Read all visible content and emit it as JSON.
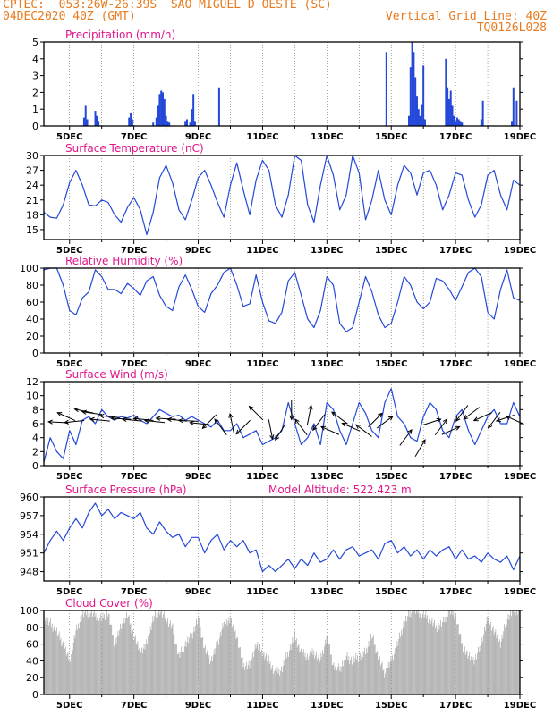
{
  "header": {
    "line1_left": "CPTEC:  053:26W-26:39S  SAO MIGUEL D OESTE (SC)",
    "line2_left": "04DEC2020 40Z (GMT)",
    "line2_right": "Vertical Grid Line: 40Z",
    "line3_right": "TQ0126L028"
  },
  "colors": {
    "header_text": "#e87a1e",
    "title_text": "#e0168a",
    "series": "#2448d8",
    "cloud": "#a6a6a6",
    "axis": "#000000"
  },
  "x_axis": {
    "ticks": [
      "5DEC",
      "7DEC",
      "9DEC",
      "11DEC",
      "13DEC",
      "15DEC",
      "17DEC",
      "19DEC"
    ],
    "tick_days": [
      5,
      7,
      9,
      11,
      13,
      15,
      17,
      19
    ],
    "range": [
      4.2,
      19.0
    ]
  },
  "chart_data": [
    {
      "id": "precip",
      "type": "bar",
      "title": "Precipitation (mm/h)",
      "ylim": [
        0,
        5
      ],
      "yticks": [
        0,
        1,
        2,
        3,
        4,
        5
      ],
      "x": [
        5.45,
        5.5,
        5.55,
        5.8,
        5.85,
        5.9,
        6.85,
        6.9,
        6.95,
        7.6,
        7.7,
        7.75,
        7.8,
        7.85,
        7.9,
        7.95,
        8.0,
        8.05,
        8.1,
        8.6,
        8.65,
        8.75,
        8.8,
        8.85,
        8.9,
        9.65,
        14.85,
        15.55,
        15.6,
        15.65,
        15.7,
        15.75,
        15.8,
        15.85,
        15.9,
        15.95,
        16.0,
        16.05,
        16.7,
        16.75,
        16.8,
        16.85,
        16.9,
        16.95,
        17.0,
        17.05,
        17.1,
        17.15,
        17.2,
        17.8,
        17.85,
        18.75,
        18.8,
        18.9
      ],
      "values": [
        0.5,
        1.2,
        0.4,
        0.9,
        0.6,
        0.3,
        0.5,
        0.8,
        0.4,
        0.2,
        0.5,
        1.2,
        1.9,
        2.1,
        2.0,
        1.6,
        0.6,
        0.3,
        0.2,
        0.3,
        0.4,
        0.2,
        1.0,
        1.9,
        0.3,
        2.3,
        4.4,
        0.6,
        3.5,
        5.0,
        4.4,
        2.9,
        1.8,
        1.0,
        0.6,
        1.3,
        3.6,
        0.4,
        4.0,
        2.3,
        1.6,
        2.1,
        1.2,
        0.6,
        0.3,
        0.5,
        0.4,
        0.3,
        0.2,
        0.4,
        1.5,
        0.3,
        2.3,
        1.5
      ]
    },
    {
      "id": "temp",
      "type": "line",
      "title": "Surface Temperature (nC)",
      "ylim": [
        13,
        30
      ],
      "yticks": [
        15,
        18,
        21,
        24,
        27,
        30
      ],
      "x": [
        4.2,
        4.4,
        4.6,
        4.8,
        5.0,
        5.2,
        5.4,
        5.6,
        5.8,
        6.0,
        6.2,
        6.4,
        6.6,
        6.8,
        7.0,
        7.2,
        7.4,
        7.6,
        7.8,
        8.0,
        8.2,
        8.4,
        8.6,
        8.8,
        9.0,
        9.2,
        9.4,
        9.6,
        9.8,
        10.0,
        10.2,
        10.4,
        10.6,
        10.8,
        11.0,
        11.2,
        11.4,
        11.6,
        11.8,
        12.0,
        12.2,
        12.4,
        12.6,
        12.8,
        13.0,
        13.2,
        13.4,
        13.6,
        13.8,
        14.0,
        14.2,
        14.4,
        14.6,
        14.8,
        15.0,
        15.2,
        15.4,
        15.6,
        15.8,
        16.0,
        16.2,
        16.4,
        16.6,
        16.8,
        17.0,
        17.2,
        17.4,
        17.6,
        17.8,
        18.0,
        18.2,
        18.4,
        18.6,
        18.8,
        19.0
      ],
      "values": [
        18.5,
        17.5,
        17.3,
        20,
        24.5,
        27,
        24,
        20,
        19.8,
        21,
        20.5,
        18,
        16.5,
        19.5,
        21.5,
        19,
        14,
        18.5,
        25.5,
        28,
        24.5,
        19,
        17,
        21,
        25.5,
        27,
        24,
        20.5,
        17.5,
        24,
        28.5,
        23,
        18,
        25,
        29,
        27,
        20,
        17.5,
        22,
        30,
        29,
        20,
        16.5,
        24,
        30,
        26,
        19,
        22,
        30,
        26.5,
        17,
        21,
        27,
        21,
        18,
        24,
        28,
        26.5,
        22,
        26.5,
        27,
        24,
        19,
        22,
        26.5,
        26,
        21,
        17.5,
        20,
        26,
        27,
        22,
        19,
        25,
        24
      ]
    },
    {
      "id": "rh",
      "type": "line",
      "title": "Relative Humidity (%)",
      "ylim": [
        0,
        100
      ],
      "yticks": [
        0,
        20,
        40,
        60,
        80,
        100
      ],
      "x": [
        4.2,
        4.4,
        4.6,
        4.8,
        5.0,
        5.2,
        5.4,
        5.6,
        5.8,
        6.0,
        6.2,
        6.4,
        6.6,
        6.8,
        7.0,
        7.2,
        7.4,
        7.6,
        7.8,
        8.0,
        8.2,
        8.4,
        8.6,
        8.8,
        9.0,
        9.2,
        9.4,
        9.6,
        9.8,
        10.0,
        10.2,
        10.4,
        10.6,
        10.8,
        11.0,
        11.2,
        11.4,
        11.6,
        11.8,
        12.0,
        12.2,
        12.4,
        12.6,
        12.8,
        13.0,
        13.2,
        13.4,
        13.6,
        13.8,
        14.0,
        14.2,
        14.4,
        14.6,
        14.8,
        15.0,
        15.2,
        15.4,
        15.6,
        15.8,
        16.0,
        16.2,
        16.4,
        16.6,
        16.8,
        17.0,
        17.2,
        17.4,
        17.6,
        17.8,
        18.0,
        18.2,
        18.4,
        18.6,
        18.8,
        19.0
      ],
      "values": [
        98,
        100,
        100,
        80,
        50,
        45,
        65,
        72,
        98,
        90,
        75,
        75,
        70,
        82,
        76,
        68,
        85,
        90,
        68,
        55,
        50,
        78,
        92,
        75,
        55,
        48,
        70,
        80,
        95,
        100,
        80,
        55,
        58,
        92,
        60,
        38,
        35,
        48,
        85,
        95,
        68,
        40,
        30,
        50,
        90,
        80,
        35,
        25,
        30,
        60,
        90,
        72,
        45,
        30,
        35,
        60,
        90,
        80,
        60,
        52,
        60,
        88,
        85,
        75,
        62,
        78,
        95,
        100,
        90,
        48,
        40,
        75,
        98,
        65,
        62
      ]
    },
    {
      "id": "wind",
      "type": "line",
      "title": "Surface Wind (m/s)",
      "ylim": [
        0,
        12
      ],
      "yticks": [
        0,
        2,
        4,
        6,
        8,
        10,
        12
      ],
      "x": [
        4.2,
        4.4,
        4.6,
        4.8,
        5.0,
        5.2,
        5.4,
        5.6,
        5.8,
        6.0,
        6.2,
        6.4,
        6.6,
        6.8,
        7.0,
        7.2,
        7.4,
        7.6,
        7.8,
        8.0,
        8.2,
        8.4,
        8.6,
        8.8,
        9.0,
        9.2,
        9.4,
        9.6,
        9.8,
        10.0,
        10.2,
        10.4,
        10.6,
        10.8,
        11.0,
        11.2,
        11.4,
        11.6,
        11.8,
        12.0,
        12.2,
        12.4,
        12.6,
        12.8,
        13.0,
        13.2,
        13.4,
        13.6,
        13.8,
        14.0,
        14.2,
        14.4,
        14.6,
        14.8,
        15.0,
        15.2,
        15.4,
        15.6,
        15.8,
        16.0,
        16.2,
        16.4,
        16.6,
        16.8,
        17.0,
        17.2,
        17.4,
        17.6,
        17.8,
        18.0,
        18.2,
        18.4,
        18.6,
        18.8,
        19.0
      ],
      "values": [
        0.5,
        4,
        2,
        1,
        5,
        3,
        6.5,
        7,
        6,
        8,
        7,
        6.5,
        7,
        6.8,
        7.2,
        6.5,
        6,
        7,
        8,
        7.5,
        7,
        7.2,
        6.5,
        7,
        6.5,
        6,
        5.5,
        6.5,
        5,
        5,
        6,
        4,
        4.5,
        5,
        3,
        3.5,
        4,
        5,
        9,
        6,
        3,
        4,
        6,
        3,
        9,
        8,
        5,
        3,
        6,
        9,
        7.5,
        5,
        4,
        9,
        11,
        7,
        6,
        4,
        3.5,
        7,
        9,
        8,
        5,
        4,
        7,
        8,
        5,
        3,
        5,
        7,
        8,
        6,
        6,
        9,
        7
      ]
    },
    {
      "id": "pres",
      "type": "line",
      "title": "Surface Pressure (hPa)",
      "subtitle": "Model Altitude: 522.423 m",
      "ylim": [
        946.5,
        960
      ],
      "yticks": [
        948,
        951,
        954,
        957,
        960
      ],
      "x": [
        4.2,
        4.4,
        4.6,
        4.8,
        5.0,
        5.2,
        5.4,
        5.6,
        5.8,
        6.0,
        6.2,
        6.4,
        6.6,
        6.8,
        7.0,
        7.2,
        7.4,
        7.6,
        7.8,
        8.0,
        8.2,
        8.4,
        8.6,
        8.8,
        9.0,
        9.2,
        9.4,
        9.6,
        9.8,
        10.0,
        10.2,
        10.4,
        10.6,
        10.8,
        11.0,
        11.2,
        11.4,
        11.6,
        11.8,
        12.0,
        12.2,
        12.4,
        12.6,
        12.8,
        13.0,
        13.2,
        13.4,
        13.6,
        13.8,
        14.0,
        14.2,
        14.4,
        14.6,
        14.8,
        15.0,
        15.2,
        15.4,
        15.6,
        15.8,
        16.0,
        16.2,
        16.4,
        16.6,
        16.8,
        17.0,
        17.2,
        17.4,
        17.6,
        17.8,
        18.0,
        18.2,
        18.4,
        18.6,
        18.8,
        19.0
      ],
      "values": [
        951,
        953,
        954.5,
        953,
        955,
        956.5,
        955,
        957.5,
        959,
        957,
        958,
        956.5,
        957.5,
        957,
        956.5,
        957.5,
        955,
        954,
        956,
        954.5,
        953.5,
        954,
        952,
        953.5,
        953.5,
        951,
        953,
        954,
        951.5,
        953,
        952,
        953,
        951,
        951.5,
        948,
        949,
        948,
        949,
        950,
        948.5,
        950,
        949,
        951,
        949.5,
        950,
        951.5,
        950,
        951.5,
        952,
        950.5,
        951,
        951.5,
        950,
        952.5,
        953,
        951,
        952,
        950.5,
        951.5,
        950,
        951.5,
        950.5,
        951.5,
        952,
        950,
        951.5,
        950,
        950.5,
        949.5,
        951,
        950,
        949.5,
        950.5,
        948.3,
        950.5
      ]
    },
    {
      "id": "cloud",
      "type": "area",
      "title": "Cloud Cover (%)",
      "ylim": [
        0,
        100
      ],
      "yticks": [
        0,
        20,
        40,
        60,
        80,
        100
      ],
      "x": [
        4.2,
        4.4,
        4.6,
        4.8,
        5.0,
        5.2,
        5.4,
        5.6,
        5.8,
        6.0,
        6.2,
        6.4,
        6.6,
        6.8,
        7.0,
        7.2,
        7.4,
        7.6,
        7.8,
        8.0,
        8.2,
        8.4,
        8.6,
        8.8,
        9.0,
        9.2,
        9.4,
        9.6,
        9.8,
        10.0,
        10.2,
        10.4,
        10.6,
        10.8,
        11.0,
        11.2,
        11.4,
        11.6,
        11.8,
        12.0,
        12.2,
        12.4,
        12.6,
        12.8,
        13.0,
        13.2,
        13.4,
        13.6,
        13.8,
        14.0,
        14.2,
        14.4,
        14.6,
        14.8,
        15.0,
        15.2,
        15.4,
        15.6,
        15.8,
        16.0,
        16.2,
        16.4,
        16.6,
        16.8,
        17.0,
        17.2,
        17.4,
        17.6,
        17.8,
        18.0,
        18.2,
        18.4,
        18.6,
        18.8,
        19.0
      ],
      "values": [
        90,
        85,
        75,
        60,
        40,
        75,
        95,
        98,
        95,
        90,
        98,
        60,
        80,
        95,
        70,
        50,
        60,
        90,
        100,
        90,
        80,
        45,
        60,
        70,
        90,
        55,
        40,
        60,
        85,
        90,
        70,
        35,
        35,
        60,
        50,
        40,
        25,
        30,
        50,
        70,
        50,
        45,
        50,
        40,
        70,
        35,
        30,
        45,
        40,
        45,
        50,
        70,
        45,
        25,
        40,
        60,
        85,
        98,
        100,
        95,
        90,
        80,
        85,
        100,
        95,
        60,
        45,
        40,
        60,
        90,
        75,
        60,
        90,
        100,
        100
      ]
    }
  ],
  "wind_arrows": [
    {
      "day": 4.65,
      "speed": 6.2,
      "dx": -1,
      "dy": 0.05
    },
    {
      "day": 4.9,
      "speed": 7.0,
      "dx": -0.9,
      "dy": 0.4
    },
    {
      "day": 5.15,
      "speed": 6.3,
      "dx": -1,
      "dy": -0.1
    },
    {
      "day": 5.45,
      "speed": 7.8,
      "dx": -0.95,
      "dy": 0.2
    },
    {
      "day": 5.7,
      "speed": 7.5,
      "dx": -1,
      "dy": 0.15
    },
    {
      "day": 5.95,
      "speed": 6.5,
      "dx": -1,
      "dy": 0.1
    },
    {
      "day": 6.25,
      "speed": 7.0,
      "dx": -1,
      "dy": 0.1
    },
    {
      "day": 6.6,
      "speed": 6.7,
      "dx": -1,
      "dy": 0.05
    },
    {
      "day": 6.95,
      "speed": 6.5,
      "dx": -1,
      "dy": 0.1
    },
    {
      "day": 7.3,
      "speed": 6.6,
      "dx": -1,
      "dy": 0.1
    },
    {
      "day": 7.65,
      "speed": 6.3,
      "dx": -1,
      "dy": 0.1
    },
    {
      "day": 8.0,
      "speed": 6.7,
      "dx": -1,
      "dy": 0.05
    },
    {
      "day": 8.35,
      "speed": 6.5,
      "dx": -1,
      "dy": 0.1
    },
    {
      "day": 8.7,
      "speed": 6.4,
      "dx": -1,
      "dy": 0.05
    },
    {
      "day": 9.05,
      "speed": 6.0,
      "dx": -1,
      "dy": 0.1
    },
    {
      "day": 9.35,
      "speed": 6.3,
      "dx": -0.7,
      "dy": -0.7
    },
    {
      "day": 9.7,
      "speed": 5.5,
      "dx": -0.6,
      "dy": 0.8
    },
    {
      "day": 10.05,
      "speed": 6.0,
      "dx": -0.2,
      "dy": 1
    },
    {
      "day": 10.4,
      "speed": 5.5,
      "dx": -0.7,
      "dy": -0.7
    },
    {
      "day": 10.8,
      "speed": 7.5,
      "dx": -0.7,
      "dy": 0.7
    },
    {
      "day": 11.25,
      "speed": 5.2,
      "dx": 0.2,
      "dy": -1
    },
    {
      "day": 11.55,
      "speed": 4.8,
      "dx": -0.5,
      "dy": -0.8
    },
    {
      "day": 11.9,
      "speed": 8.0,
      "dx": 0,
      "dy": -1
    },
    {
      "day": 12.2,
      "speed": 5.5,
      "dx": -0.6,
      "dy": 0.8
    },
    {
      "day": 12.45,
      "speed": 7.2,
      "dx": 0.2,
      "dy": 1
    },
    {
      "day": 12.75,
      "speed": 6.2,
      "dx": -0.6,
      "dy": -0.8
    },
    {
      "day": 13.1,
      "speed": 5.0,
      "dx": -0.9,
      "dy": 0.4
    },
    {
      "day": 13.4,
      "speed": 6.8,
      "dx": -0.8,
      "dy": 0.6
    },
    {
      "day": 13.75,
      "speed": 5.5,
      "dx": -0.9,
      "dy": 0.4
    },
    {
      "day": 14.15,
      "speed": 5.0,
      "dx": -0.8,
      "dy": 0.6
    },
    {
      "day": 14.5,
      "speed": 6.5,
      "dx": 0.7,
      "dy": 0.7
    },
    {
      "day": 14.8,
      "speed": 6.2,
      "dx": 0.8,
      "dy": 0.6
    },
    {
      "day": 15.45,
      "speed": 4.0,
      "dx": 0.6,
      "dy": 0.8
    },
    {
      "day": 15.9,
      "speed": 2.5,
      "dx": 0.5,
      "dy": 0.85
    },
    {
      "day": 16.25,
      "speed": 6.2,
      "dx": 0.95,
      "dy": 0.3
    },
    {
      "day": 16.55,
      "speed": 5.5,
      "dx": 0.6,
      "dy": 0.8
    },
    {
      "day": 16.85,
      "speed": 5.0,
      "dx": 0.9,
      "dy": 0.4
    },
    {
      "day": 17.2,
      "speed": 7.5,
      "dx": -0.6,
      "dy": -0.8
    },
    {
      "day": 17.5,
      "speed": 7.5,
      "dx": -0.8,
      "dy": -0.6
    },
    {
      "day": 17.85,
      "speed": 7.0,
      "dx": -0.9,
      "dy": -0.4
    },
    {
      "day": 18.2,
      "speed": 6.5,
      "dx": -0.6,
      "dy": -0.8
    },
    {
      "day": 18.55,
      "speed": 6.8,
      "dx": -0.9,
      "dy": -0.3
    },
    {
      "day": 18.85,
      "speed": 6.5,
      "dx": -0.9,
      "dy": 0.4
    }
  ]
}
